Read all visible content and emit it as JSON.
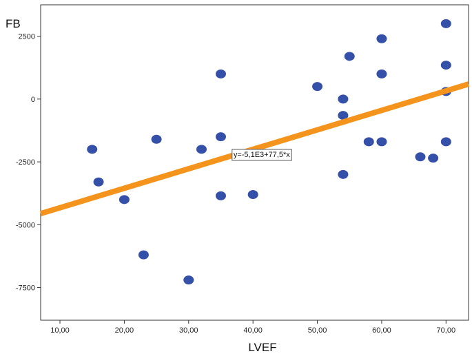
{
  "chart_data": {
    "type": "scatter",
    "title": "",
    "xlabel": "LVEF",
    "ylabel": "FB",
    "xlim": [
      7,
      73.5
    ],
    "ylim": [
      -8800,
      3750
    ],
    "x_ticks": [
      "10,00",
      "20,00",
      "30,00",
      "40,00",
      "50,00",
      "60,00",
      "70,00"
    ],
    "x_tick_values": [
      10,
      20,
      30,
      40,
      50,
      60,
      70
    ],
    "y_ticks": [
      "2500",
      "0",
      "-2500",
      "-5000",
      "-7500"
    ],
    "y_tick_values": [
      2500,
      0,
      -2500,
      -5000,
      -7500
    ],
    "grid": false,
    "points": [
      {
        "x": 15,
        "y": -2000
      },
      {
        "x": 16,
        "y": -3300
      },
      {
        "x": 20,
        "y": -4000
      },
      {
        "x": 23,
        "y": -6200
      },
      {
        "x": 25,
        "y": -1600
      },
      {
        "x": 30,
        "y": -7200
      },
      {
        "x": 32,
        "y": -2000
      },
      {
        "x": 35,
        "y": 1000
      },
      {
        "x": 35,
        "y": -1500
      },
      {
        "x": 35,
        "y": -3850
      },
      {
        "x": 40,
        "y": -3800
      },
      {
        "x": 50,
        "y": 500
      },
      {
        "x": 54,
        "y": 0
      },
      {
        "x": 54,
        "y": -650
      },
      {
        "x": 54,
        "y": -3000
      },
      {
        "x": 55,
        "y": 1700
      },
      {
        "x": 58,
        "y": -1700
      },
      {
        "x": 60,
        "y": 2400
      },
      {
        "x": 60,
        "y": 1000
      },
      {
        "x": 60,
        "y": -1700
      },
      {
        "x": 66,
        "y": -2300
      },
      {
        "x": 68,
        "y": -2350
      },
      {
        "x": 70,
        "y": 3000
      },
      {
        "x": 70,
        "y": 1350
      },
      {
        "x": 70,
        "y": 300
      },
      {
        "x": 70,
        "y": -1700
      }
    ],
    "fit_line": {
      "intercept": -5100,
      "slope": 77.5,
      "equation_label": "y=-5,1E3+77,5*x"
    },
    "colors": {
      "points": "#3550a8",
      "fit_line": "#f5941d",
      "axis": "#333333"
    }
  }
}
